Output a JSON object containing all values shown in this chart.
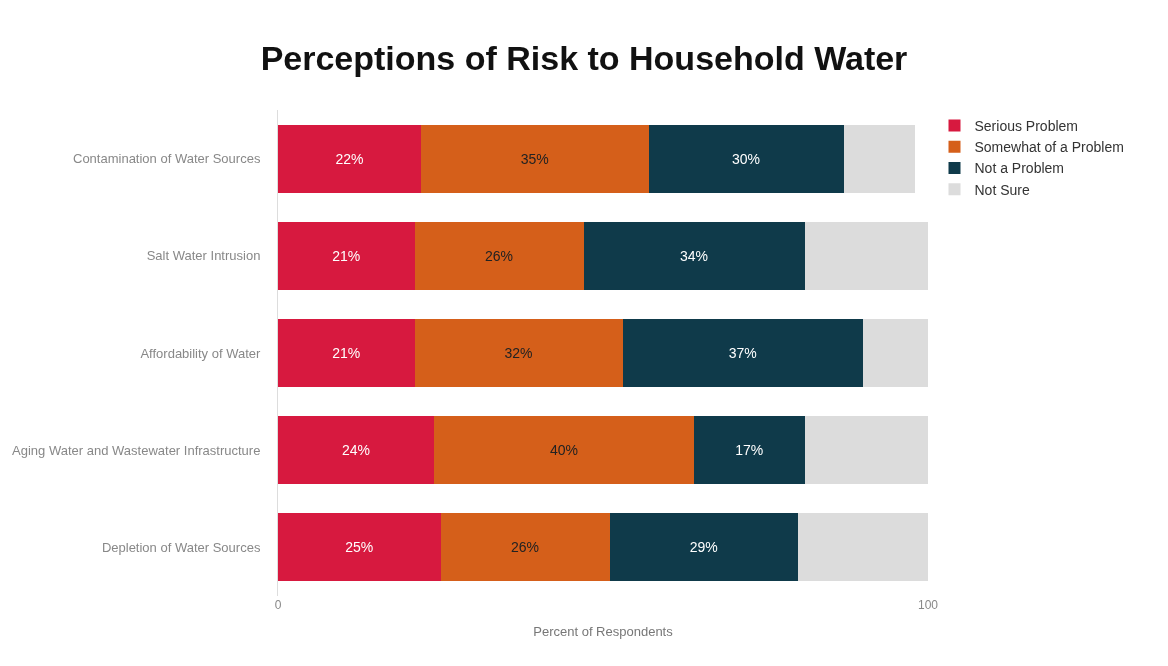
{
  "chart_data": {
    "type": "bar",
    "orientation": "horizontal",
    "stacked": true,
    "title": "Perceptions of Risk to Household Water",
    "xlabel": "Percent of Respondents",
    "categories": [
      "Contamination of Water Sources",
      "Salt Water Intrusion",
      "Affordability of Water",
      "Aging Water and Wastewater Infrastructure",
      "Depletion of Water Sources"
    ],
    "series": [
      {
        "name": "Serious Problem",
        "color": "#d7193f",
        "values": [
          22,
          21,
          21,
          24,
          25
        ],
        "value_labels": [
          "22%",
          "21%",
          "21%",
          "24%",
          "25%"
        ]
      },
      {
        "name": "Somewhat of a Problem",
        "color": "#d55f1a",
        "values": [
          35,
          26,
          32,
          40,
          26
        ],
        "value_labels": [
          "35%",
          "26%",
          "32%",
          "40%",
          "26%"
        ]
      },
      {
        "name": "Not a Problem",
        "color": "#0f3a4a",
        "values": [
          30,
          34,
          37,
          17,
          29
        ],
        "value_labels": [
          "30%",
          "34%",
          "37%",
          "17%",
          "29%"
        ]
      },
      {
        "name": "Not Sure",
        "color": "#dcdcdc",
        "values": [
          11,
          19,
          10,
          19,
          20
        ]
      }
    ],
    "xlim": [
      0,
      100
    ],
    "xticks": [
      0,
      100
    ],
    "legend": "top right"
  }
}
